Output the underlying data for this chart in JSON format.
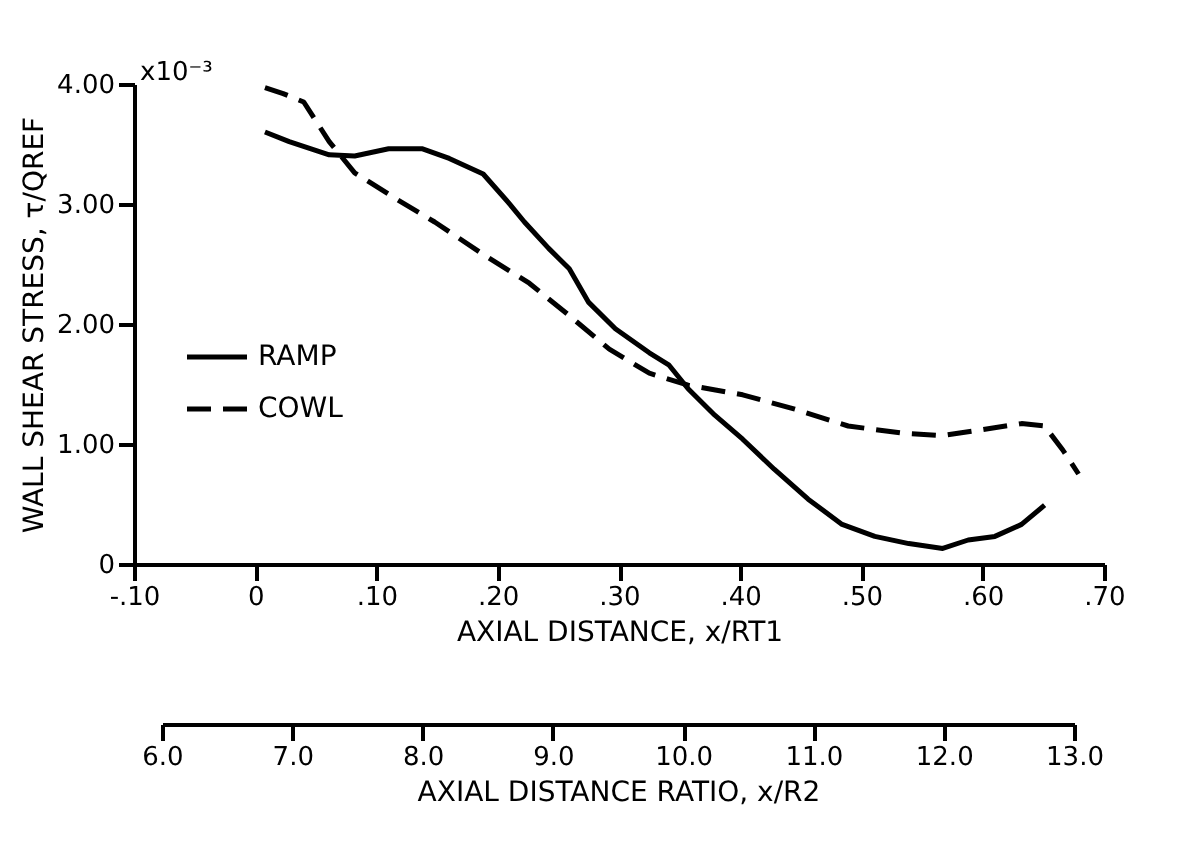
{
  "chart_data": {
    "type": "line",
    "xlabel": "AXIAL DISTANCE, x/RT1",
    "ylabel": "WALL SHEAR STRESS, τ/QREF",
    "x2label": "AXIAL DISTANCE RATIO, x/R2",
    "annotations": [
      "x10⁻³"
    ],
    "xlim": [
      -0.1,
      0.7
    ],
    "xticks": [
      {
        "value": -0.1,
        "label": "-.10"
      },
      0,
      {
        "value": 0.1,
        "label": ".10"
      },
      {
        "value": 0.2,
        "label": ".20"
      },
      {
        "value": 0.3,
        "label": ".30"
      },
      {
        "value": 0.4,
        "label": ".40"
      },
      {
        "value": 0.5,
        "label": ".50"
      },
      {
        "value": 0.6,
        "label": ".60"
      },
      {
        "value": 0.7,
        "label": ".70"
      }
    ],
    "ylim": [
      0,
      4
    ],
    "yticks": [
      0,
      {
        "value": 1,
        "label": "1.00"
      },
      {
        "value": 2,
        "label": "2.00"
      },
      {
        "value": 3,
        "label": "3.00"
      },
      {
        "value": 4,
        "label": "4.00"
      }
    ],
    "x2lim": [
      6,
      13
    ],
    "x2ticks": [
      {
        "value": 6,
        "label": "6.0"
      },
      {
        "value": 7,
        "label": "7.0"
      },
      {
        "value": 8,
        "label": "8.0"
      },
      {
        "value": 9,
        "label": "9.0"
      },
      {
        "value": 10,
        "label": "10.0"
      },
      {
        "value": 11,
        "label": "11.0"
      },
      {
        "value": 12,
        "label": "12.0"
      },
      {
        "value": 13,
        "label": "13.0"
      }
    ],
    "grid": false,
    "legend": "left",
    "marker": "none",
    "series": [
      {
        "name": "RAMP",
        "color": "#000000",
        "line_style": "solid",
        "x": [
          0.008,
          0.028,
          0.061,
          0.082,
          0.11,
          0.138,
          0.16,
          0.188,
          0.209,
          0.222,
          0.242,
          0.259,
          0.275,
          0.297,
          0.325,
          0.341,
          0.357,
          0.379,
          0.402,
          0.428,
          0.456,
          0.484,
          0.511,
          0.539,
          0.567,
          0.588,
          0.61,
          0.632,
          0.651
        ],
        "values": [
          3.6,
          3.52,
          3.41,
          3.4,
          3.46,
          3.46,
          3.38,
          3.25,
          3.01,
          2.85,
          2.63,
          2.46,
          2.18,
          1.96,
          1.76,
          1.66,
          1.46,
          1.24,
          1.04,
          0.79,
          0.54,
          0.33,
          0.23,
          0.17,
          0.13,
          0.2,
          0.23,
          0.33,
          0.49
        ]
      },
      {
        "name": "COWL",
        "color": "#000000",
        "line_style": "dashed",
        "x": [
          0.008,
          0.023,
          0.04,
          0.061,
          0.082,
          0.115,
          0.148,
          0.188,
          0.226,
          0.259,
          0.292,
          0.325,
          0.357,
          0.402,
          0.445,
          0.489,
          0.534,
          0.567,
          0.6,
          0.632,
          0.651,
          0.666,
          0.679
        ],
        "values": [
          3.97,
          3.92,
          3.85,
          3.52,
          3.26,
          3.05,
          2.85,
          2.58,
          2.34,
          2.07,
          1.79,
          1.59,
          1.49,
          1.41,
          1.29,
          1.15,
          1.09,
          1.07,
          1.12,
          1.17,
          1.15,
          0.95,
          0.75
        ]
      }
    ]
  }
}
